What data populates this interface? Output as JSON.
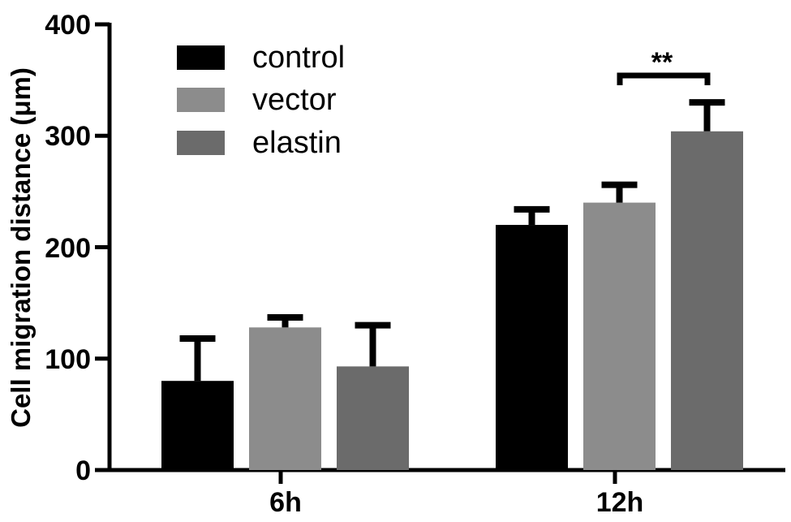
{
  "chart_data": {
    "type": "bar",
    "title": "",
    "xlabel": "",
    "ylabel": "Cell migration distance (μm)",
    "ylim": [
      0,
      400
    ],
    "yticks": [
      0,
      100,
      200,
      300,
      400
    ],
    "ytick_labels": [
      "0",
      "100",
      "200",
      "300",
      "400"
    ],
    "categories": [
      "6h",
      "12h"
    ],
    "grid": false,
    "legend_position": "upper-left",
    "series": [
      {
        "name": "control",
        "color": "#000000",
        "values": [
          80,
          220
        ],
        "error": [
          38,
          14
        ]
      },
      {
        "name": "vector",
        "color": "#8c8c8c",
        "values": [
          128,
          240
        ],
        "error": [
          9,
          16
        ]
      },
      {
        "name": "elastin",
        "color": "#6b6b6b",
        "values": [
          93,
          304
        ],
        "error": [
          37,
          26
        ]
      }
    ],
    "annotations": [
      {
        "text": "**",
        "group": "12h",
        "between": [
          "vector",
          "elastin"
        ],
        "type": "significance-bracket"
      }
    ]
  },
  "axis": {
    "ylabel": "Cell migration distance (μm)",
    "yticks": [
      "0",
      "100",
      "200",
      "300",
      "400"
    ],
    "xticks": [
      "6h",
      "12h"
    ]
  },
  "legend": {
    "items": [
      {
        "label": "control",
        "color": "#000000"
      },
      {
        "label": "vector",
        "color": "#8c8c8c"
      },
      {
        "label": "elastin",
        "color": "#6b6b6b"
      }
    ]
  },
  "significance": {
    "label": "**"
  }
}
